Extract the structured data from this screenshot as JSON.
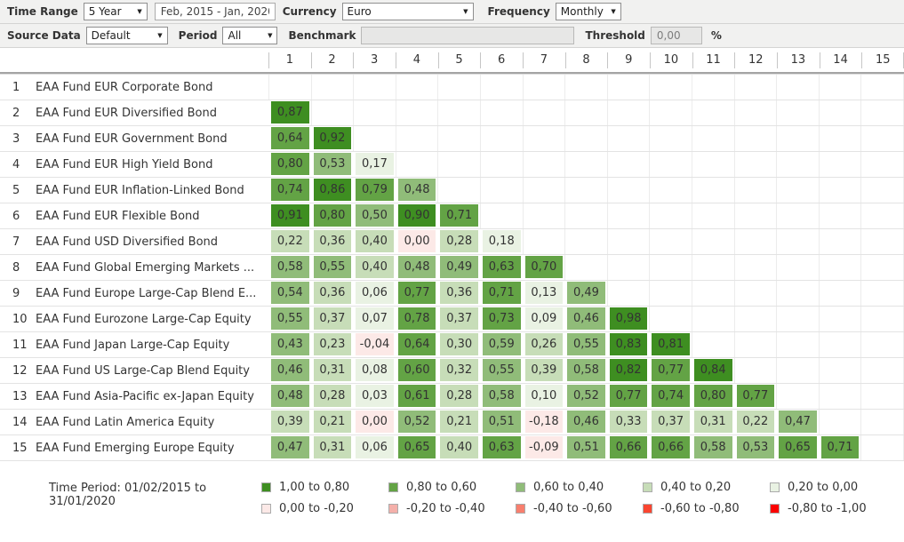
{
  "toolbar": {
    "row1": {
      "time_range_label": "Time Range",
      "time_range_value": "5 Year",
      "date_range_value": "Feb, 2015 - Jan, 2020",
      "currency_label": "Currency",
      "currency_value": "Euro",
      "frequency_label": "Frequency",
      "frequency_value": "Monthly"
    },
    "row2": {
      "source_data_label": "Source Data",
      "source_data_value": "Default",
      "period_label": "Period",
      "period_value": "All",
      "benchmark_label": "Benchmark",
      "benchmark_value": "",
      "threshold_label": "Threshold",
      "threshold_value": "0,00",
      "threshold_unit": "%"
    }
  },
  "colors": {
    "b1": "#3e8e21",
    "b2": "#63a345",
    "b3": "#90bc79",
    "b4": "#c7ddb8",
    "b5": "#e9f2e3",
    "b6": "#fce9e7",
    "b7": "#f4b0aa",
    "b8": "#f87f6e",
    "b9": "#fa4530",
    "b10": "#fb0200"
  },
  "matrix": {
    "columns": [
      "1",
      "2",
      "3",
      "4",
      "5",
      "6",
      "7",
      "8",
      "9",
      "10",
      "11",
      "12",
      "13",
      "14",
      "15"
    ],
    "rows": [
      {
        "num": "1",
        "name": "EAA Fund EUR Corporate Bond",
        "cells": []
      },
      {
        "num": "2",
        "name": "EAA Fund EUR Diversified Bond",
        "cells": [
          {
            "v": "0,87",
            "b": 1
          }
        ]
      },
      {
        "num": "3",
        "name": "EAA Fund EUR Government Bond",
        "cells": [
          {
            "v": "0,64",
            "b": 2
          },
          {
            "v": "0,92",
            "b": 1
          }
        ]
      },
      {
        "num": "4",
        "name": "EAA Fund EUR High Yield Bond",
        "cells": [
          {
            "v": "0,80",
            "b": 2
          },
          {
            "v": "0,53",
            "b": 3
          },
          {
            "v": "0,17",
            "b": 5
          }
        ]
      },
      {
        "num": "5",
        "name": "EAA Fund EUR Inflation-Linked Bond",
        "cells": [
          {
            "v": "0,74",
            "b": 2
          },
          {
            "v": "0,86",
            "b": 1
          },
          {
            "v": "0,79",
            "b": 2
          },
          {
            "v": "0,48",
            "b": 3
          }
        ]
      },
      {
        "num": "6",
        "name": "EAA Fund EUR Flexible Bond",
        "cells": [
          {
            "v": "0,91",
            "b": 1
          },
          {
            "v": "0,80",
            "b": 2
          },
          {
            "v": "0,50",
            "b": 3
          },
          {
            "v": "0,90",
            "b": 1
          },
          {
            "v": "0,71",
            "b": 2
          }
        ]
      },
      {
        "num": "7",
        "name": "EAA Fund USD Diversified Bond",
        "cells": [
          {
            "v": "0,22",
            "b": 4
          },
          {
            "v": "0,36",
            "b": 4
          },
          {
            "v": "0,40",
            "b": 4
          },
          {
            "v": "0,00",
            "b": 6
          },
          {
            "v": "0,28",
            "b": 4
          },
          {
            "v": "0,18",
            "b": 5
          }
        ]
      },
      {
        "num": "8",
        "name": "EAA Fund Global Emerging Markets ...",
        "cells": [
          {
            "v": "0,58",
            "b": 3
          },
          {
            "v": "0,55",
            "b": 3
          },
          {
            "v": "0,40",
            "b": 4
          },
          {
            "v": "0,48",
            "b": 3
          },
          {
            "v": "0,49",
            "b": 3
          },
          {
            "v": "0,63",
            "b": 2
          },
          {
            "v": "0,70",
            "b": 2
          }
        ]
      },
      {
        "num": "9",
        "name": "EAA Fund Europe Large-Cap Blend E...",
        "cells": [
          {
            "v": "0,54",
            "b": 3
          },
          {
            "v": "0,36",
            "b": 4
          },
          {
            "v": "0,06",
            "b": 5
          },
          {
            "v": "0,77",
            "b": 2
          },
          {
            "v": "0,36",
            "b": 4
          },
          {
            "v": "0,71",
            "b": 2
          },
          {
            "v": "0,13",
            "b": 5
          },
          {
            "v": "0,49",
            "b": 3
          }
        ]
      },
      {
        "num": "10",
        "name": "EAA Fund Eurozone Large-Cap Equity",
        "cells": [
          {
            "v": "0,55",
            "b": 3
          },
          {
            "v": "0,37",
            "b": 4
          },
          {
            "v": "0,07",
            "b": 5
          },
          {
            "v": "0,78",
            "b": 2
          },
          {
            "v": "0,37",
            "b": 4
          },
          {
            "v": "0,73",
            "b": 2
          },
          {
            "v": "0,09",
            "b": 5
          },
          {
            "v": "0,46",
            "b": 3
          },
          {
            "v": "0,98",
            "b": 1
          }
        ]
      },
      {
        "num": "11",
        "name": "EAA Fund Japan Large-Cap Equity",
        "cells": [
          {
            "v": "0,43",
            "b": 3
          },
          {
            "v": "0,23",
            "b": 4
          },
          {
            "v": "-0,04",
            "b": 6
          },
          {
            "v": "0,64",
            "b": 2
          },
          {
            "v": "0,30",
            "b": 4
          },
          {
            "v": "0,59",
            "b": 3
          },
          {
            "v": "0,26",
            "b": 4
          },
          {
            "v": "0,55",
            "b": 3
          },
          {
            "v": "0,83",
            "b": 1
          },
          {
            "v": "0,81",
            "b": 1
          }
        ]
      },
      {
        "num": "12",
        "name": "EAA Fund US Large-Cap Blend Equity",
        "cells": [
          {
            "v": "0,46",
            "b": 3
          },
          {
            "v": "0,31",
            "b": 4
          },
          {
            "v": "0,08",
            "b": 5
          },
          {
            "v": "0,60",
            "b": 2
          },
          {
            "v": "0,32",
            "b": 4
          },
          {
            "v": "0,55",
            "b": 3
          },
          {
            "v": "0,39",
            "b": 4
          },
          {
            "v": "0,58",
            "b": 3
          },
          {
            "v": "0,82",
            "b": 1
          },
          {
            "v": "0,77",
            "b": 2
          },
          {
            "v": "0,84",
            "b": 1
          }
        ]
      },
      {
        "num": "13",
        "name": "EAA Fund Asia-Pacific ex-Japan Equity",
        "cells": [
          {
            "v": "0,48",
            "b": 3
          },
          {
            "v": "0,28",
            "b": 4
          },
          {
            "v": "0,03",
            "b": 5
          },
          {
            "v": "0,61",
            "b": 2
          },
          {
            "v": "0,28",
            "b": 4
          },
          {
            "v": "0,58",
            "b": 3
          },
          {
            "v": "0,10",
            "b": 5
          },
          {
            "v": "0,52",
            "b": 3
          },
          {
            "v": "0,77",
            "b": 2
          },
          {
            "v": "0,74",
            "b": 2
          },
          {
            "v": "0,80",
            "b": 2
          },
          {
            "v": "0,77",
            "b": 2
          }
        ]
      },
      {
        "num": "14",
        "name": "EAA Fund Latin America Equity",
        "cells": [
          {
            "v": "0,39",
            "b": 4
          },
          {
            "v": "0,21",
            "b": 4
          },
          {
            "v": "0,00",
            "b": 6
          },
          {
            "v": "0,52",
            "b": 3
          },
          {
            "v": "0,21",
            "b": 4
          },
          {
            "v": "0,51",
            "b": 3
          },
          {
            "v": "-0,18",
            "b": 6
          },
          {
            "v": "0,46",
            "b": 3
          },
          {
            "v": "0,33",
            "b": 4
          },
          {
            "v": "0,37",
            "b": 4
          },
          {
            "v": "0,31",
            "b": 4
          },
          {
            "v": "0,22",
            "b": 4
          },
          {
            "v": "0,47",
            "b": 3
          }
        ]
      },
      {
        "num": "15",
        "name": "EAA Fund Emerging Europe Equity",
        "cells": [
          {
            "v": "0,47",
            "b": 3
          },
          {
            "v": "0,31",
            "b": 4
          },
          {
            "v": "0,06",
            "b": 5
          },
          {
            "v": "0,65",
            "b": 2
          },
          {
            "v": "0,40",
            "b": 4
          },
          {
            "v": "0,63",
            "b": 2
          },
          {
            "v": "-0,09",
            "b": 6
          },
          {
            "v": "0,51",
            "b": 3
          },
          {
            "v": "0,66",
            "b": 2
          },
          {
            "v": "0,66",
            "b": 2
          },
          {
            "v": "0,58",
            "b": 3
          },
          {
            "v": "0,53",
            "b": 3
          },
          {
            "v": "0,65",
            "b": 2
          },
          {
            "v": "0,71",
            "b": 2
          }
        ]
      }
    ]
  },
  "legend": {
    "time_period": "Time Period: 01/02/2015 to 31/01/2020",
    "items": [
      {
        "label": "1,00 to 0,80",
        "bucket": 1
      },
      {
        "label": "0,80 to 0,60",
        "bucket": 2
      },
      {
        "label": "0,60 to 0,40",
        "bucket": 3
      },
      {
        "label": "0,40 to 0,20",
        "bucket": 4
      },
      {
        "label": "0,20 to 0,00",
        "bucket": 5
      },
      {
        "label": "0,00 to -0,20",
        "bucket": 6
      },
      {
        "label": "-0,20 to -0,40",
        "bucket": 7
      },
      {
        "label": "-0,40 to -0,60",
        "bucket": 8
      },
      {
        "label": "-0,60 to -0,80",
        "bucket": 9
      },
      {
        "label": "-0,80 to -1,00",
        "bucket": 10
      }
    ]
  }
}
